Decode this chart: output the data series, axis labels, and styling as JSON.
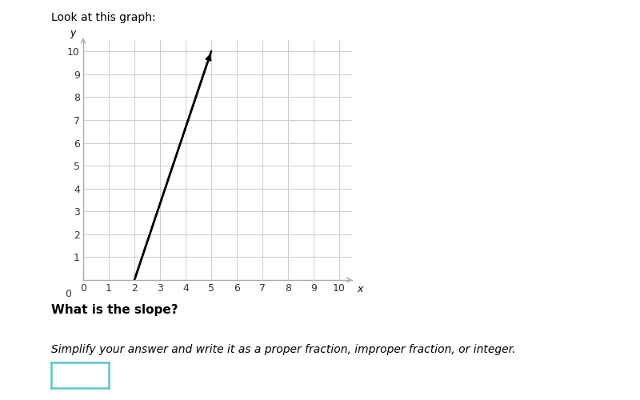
{
  "title": "Look at this graph:",
  "title_fontsize": 10,
  "xlabel": "x",
  "ylabel": "y",
  "xlim": [
    -0.5,
    10
  ],
  "ylim": [
    0,
    10.5
  ],
  "xticks": [
    0,
    1,
    2,
    3,
    4,
    5,
    6,
    7,
    8,
    9,
    10
  ],
  "yticks": [
    1,
    2,
    3,
    4,
    5,
    6,
    7,
    8,
    9,
    10
  ],
  "line_x": [
    2,
    5
  ],
  "line_y": [
    0,
    10
  ],
  "line_color": "#000000",
  "line_width": 1.8,
  "grid_color": "#cccccc",
  "background_color": "#ffffff",
  "question_text": "What is the slope?",
  "instruction_text": "Simplify your answer and write it as a proper fraction, improper fraction, or integer.",
  "box_color": "#5bc8c8"
}
